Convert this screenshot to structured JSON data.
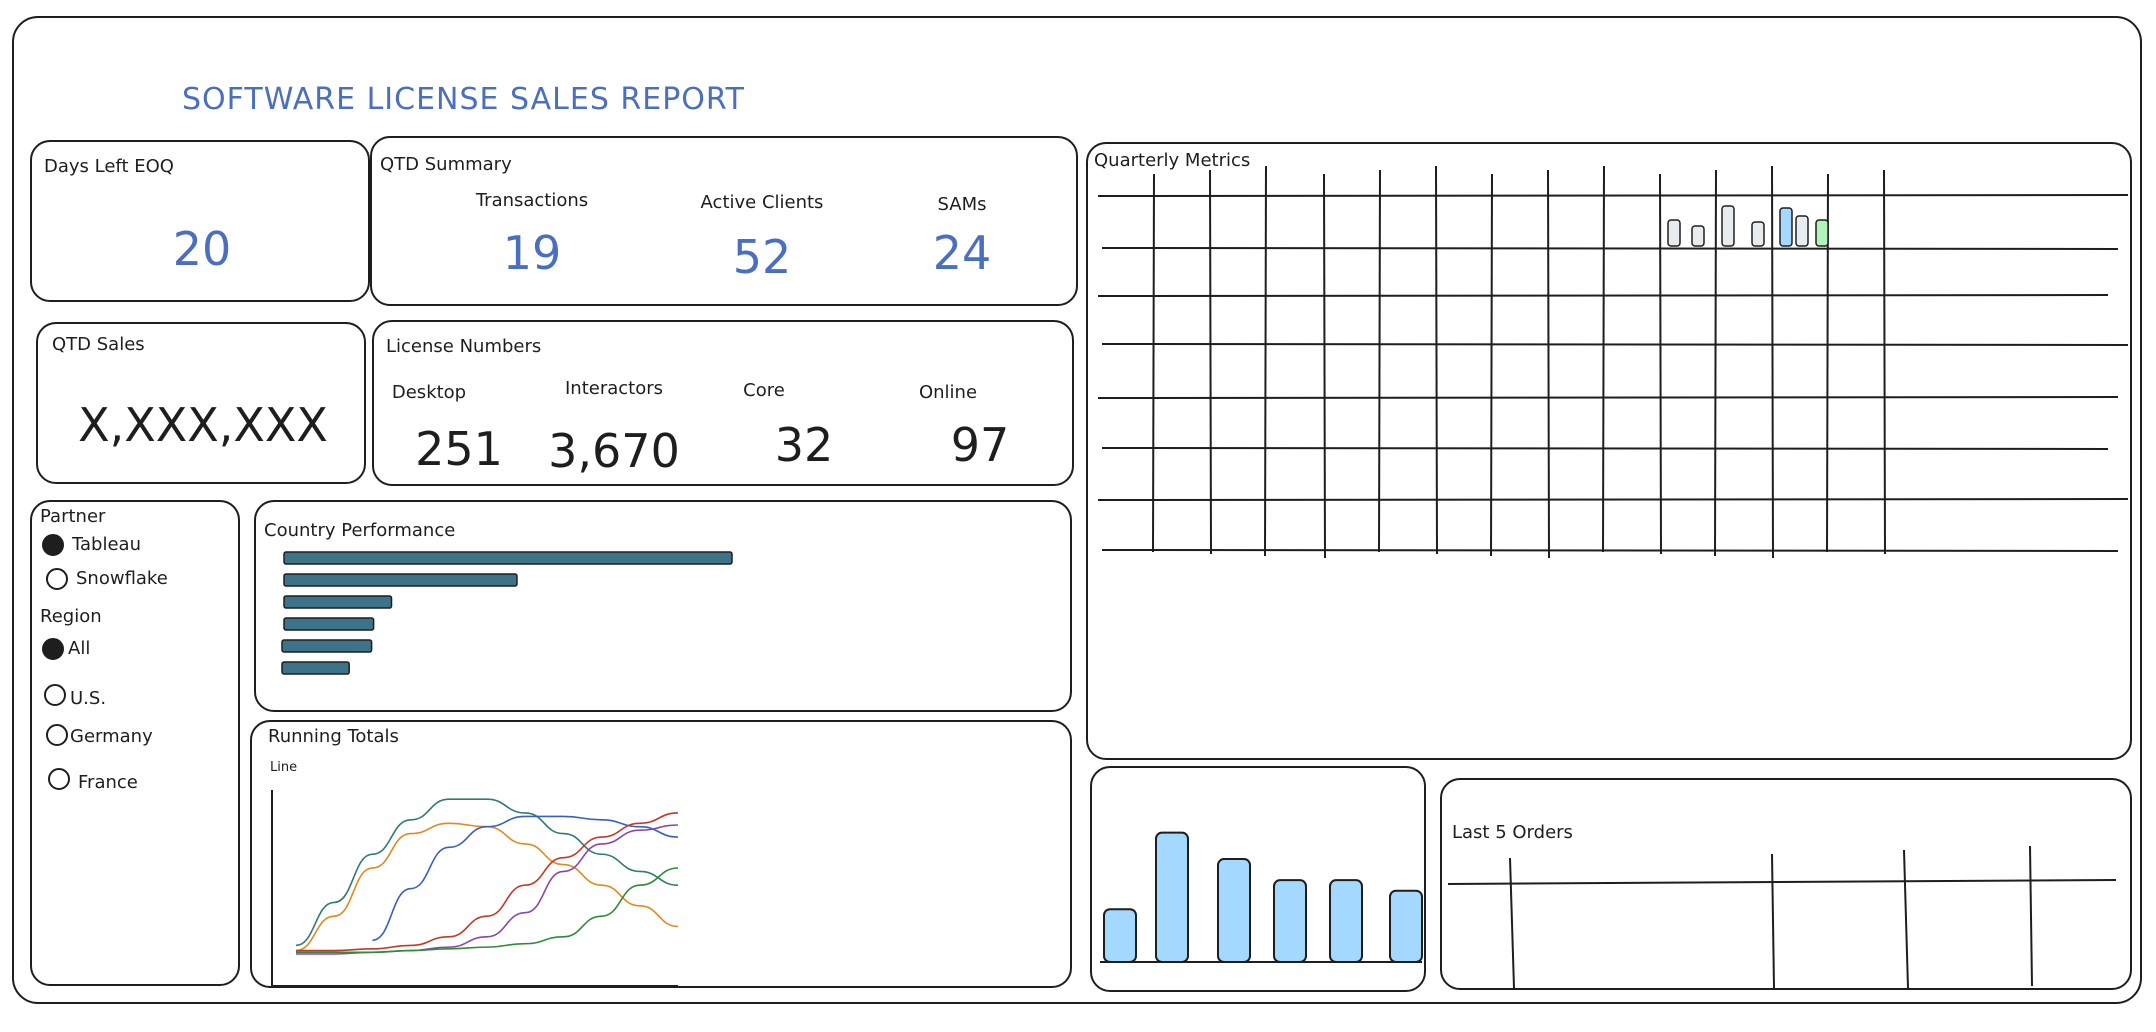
{
  "title": "SOFTWARE LICENSE SALES REPORT",
  "days_left": {
    "label": "Days Left EOQ",
    "value": "20"
  },
  "qtd_summary": {
    "label": "QTD Summary",
    "metrics": [
      {
        "label": "Transactions",
        "value": "19"
      },
      {
        "label": "Active Clients",
        "value": "52"
      },
      {
        "label": "SAMs",
        "value": "24"
      }
    ]
  },
  "qtd_sales": {
    "label": "QTD Sales",
    "value": "X,XXX,XXX"
  },
  "license_numbers": {
    "label": "License Numbers",
    "metrics": [
      {
        "label": "Desktop",
        "value": "251"
      },
      {
        "label": "Interactors",
        "value": "3,670"
      },
      {
        "label": "Core",
        "value": "32"
      },
      {
        "label": "Online",
        "value": "97"
      }
    ]
  },
  "filters": {
    "partner": {
      "label": "Partner",
      "options": [
        "Tableau",
        "Snowflake"
      ],
      "selected": "Tableau"
    },
    "region": {
      "label": "Region",
      "options": [
        "All",
        "U.S.",
        "Germany",
        "France"
      ],
      "selected": "All"
    }
  },
  "country_performance": {
    "label": "Country Performance",
    "bar_color": "#3d7389"
  },
  "running_totals": {
    "label": "Running Totals",
    "sublabel": "Line"
  },
  "quarterly_metrics": {
    "label": "Quarterly Metrics"
  },
  "last_orders": {
    "label": "Last 5 Orders"
  },
  "chart_data": [
    {
      "type": "bar",
      "orientation": "horizontal",
      "title": "Country Performance",
      "values": [
        100,
        52,
        24,
        20,
        20,
        15
      ]
    },
    {
      "type": "line",
      "title": "Running Totals",
      "subtitle": "Line",
      "x": [
        0,
        1,
        2,
        3,
        4,
        5,
        6,
        7,
        8,
        9,
        10
      ],
      "series": [
        {
          "color": "#2f7a74",
          "values": [
            5,
            30,
            58,
            78,
            90,
            90,
            82,
            70,
            58,
            48,
            40
          ]
        },
        {
          "color": "#e08a1e",
          "values": [
            2,
            22,
            50,
            70,
            76,
            74,
            64,
            52,
            40,
            28,
            16
          ]
        },
        {
          "color": "#3b5fc0",
          "values": [
            null,
            null,
            8,
            38,
            62,
            74,
            80,
            80,
            78,
            74,
            68
          ]
        },
        {
          "color": "#c0392b",
          "values": [
            2,
            2,
            3,
            5,
            10,
            22,
            40,
            56,
            68,
            76,
            82
          ]
        },
        {
          "color": "#8e44ad",
          "values": [
            0,
            0,
            1,
            2,
            4,
            10,
            24,
            48,
            64,
            72,
            75
          ]
        },
        {
          "color": "#2e8b3a",
          "values": [
            1,
            1,
            1,
            2,
            3,
            4,
            6,
            10,
            22,
            40,
            50
          ]
        }
      ]
    },
    {
      "type": "bar",
      "title": "",
      "values": [
        40,
        98,
        78,
        62,
        62,
        54
      ]
    }
  ]
}
